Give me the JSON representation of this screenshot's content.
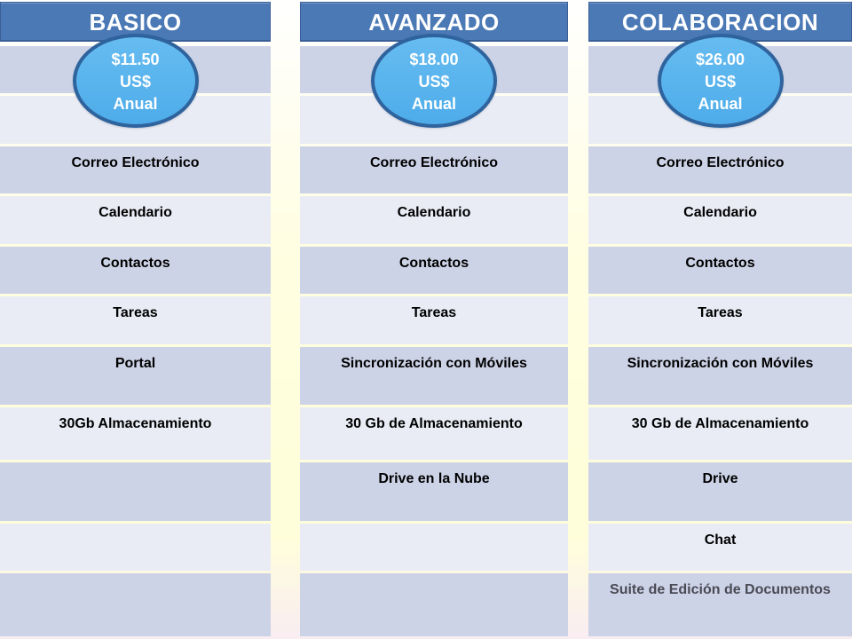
{
  "colors": {
    "header_bg": "#4A79B5",
    "header_border": "#3A5F97",
    "header_text": "#FFFFFF",
    "row_dark": "#CDD3E7",
    "row_light": "#E9ECF5",
    "ellipse_fill_top": "#66BCF1",
    "ellipse_fill_bottom": "#4EACE9",
    "ellipse_border": "#2F639D",
    "ellipse_text": "#FFFFFF",
    "body_text": "#000000",
    "muted_text": "#4A4A55"
  },
  "columns": [
    {
      "name": "BASICO",
      "price": {
        "amount": "$11.50",
        "currency": "US$",
        "period": "Anual"
      },
      "rows": [
        {
          "label": ""
        },
        {
          "label": ""
        },
        {
          "label": "Correo Electrónico"
        },
        {
          "label": "Calendario"
        },
        {
          "label": "Contactos"
        },
        {
          "label": "Tareas"
        },
        {
          "label": "Portal"
        },
        {
          "label": "30Gb Almacenamiento"
        },
        {
          "label": ""
        },
        {
          "label": ""
        },
        {
          "label": ""
        }
      ]
    },
    {
      "name": "AVANZADO",
      "price": {
        "amount": "$18.00",
        "currency": "US$",
        "period": "Anual"
      },
      "rows": [
        {
          "label": ""
        },
        {
          "label": ""
        },
        {
          "label": "Correo Electrónico"
        },
        {
          "label": "Calendario"
        },
        {
          "label": "Contactos"
        },
        {
          "label": "Tareas"
        },
        {
          "label": "Sincronización con Móviles"
        },
        {
          "label": "30 Gb de Almacenamiento"
        },
        {
          "label": "Drive en la Nube"
        },
        {
          "label": ""
        },
        {
          "label": ""
        }
      ]
    },
    {
      "name": "COLABORACION",
      "price": {
        "amount": "$26.00",
        "currency": "US$",
        "period": "Anual"
      },
      "rows": [
        {
          "label": ""
        },
        {
          "label": ""
        },
        {
          "label": "Correo Electrónico"
        },
        {
          "label": "Calendario"
        },
        {
          "label": "Contactos"
        },
        {
          "label": "Tareas"
        },
        {
          "label": "Sincronización con Móviles"
        },
        {
          "label": "30 Gb de Almacenamiento"
        },
        {
          "label": "Drive"
        },
        {
          "label": "Chat"
        },
        {
          "label": "Suite de Edición de Documentos",
          "muted": true
        }
      ]
    }
  ]
}
